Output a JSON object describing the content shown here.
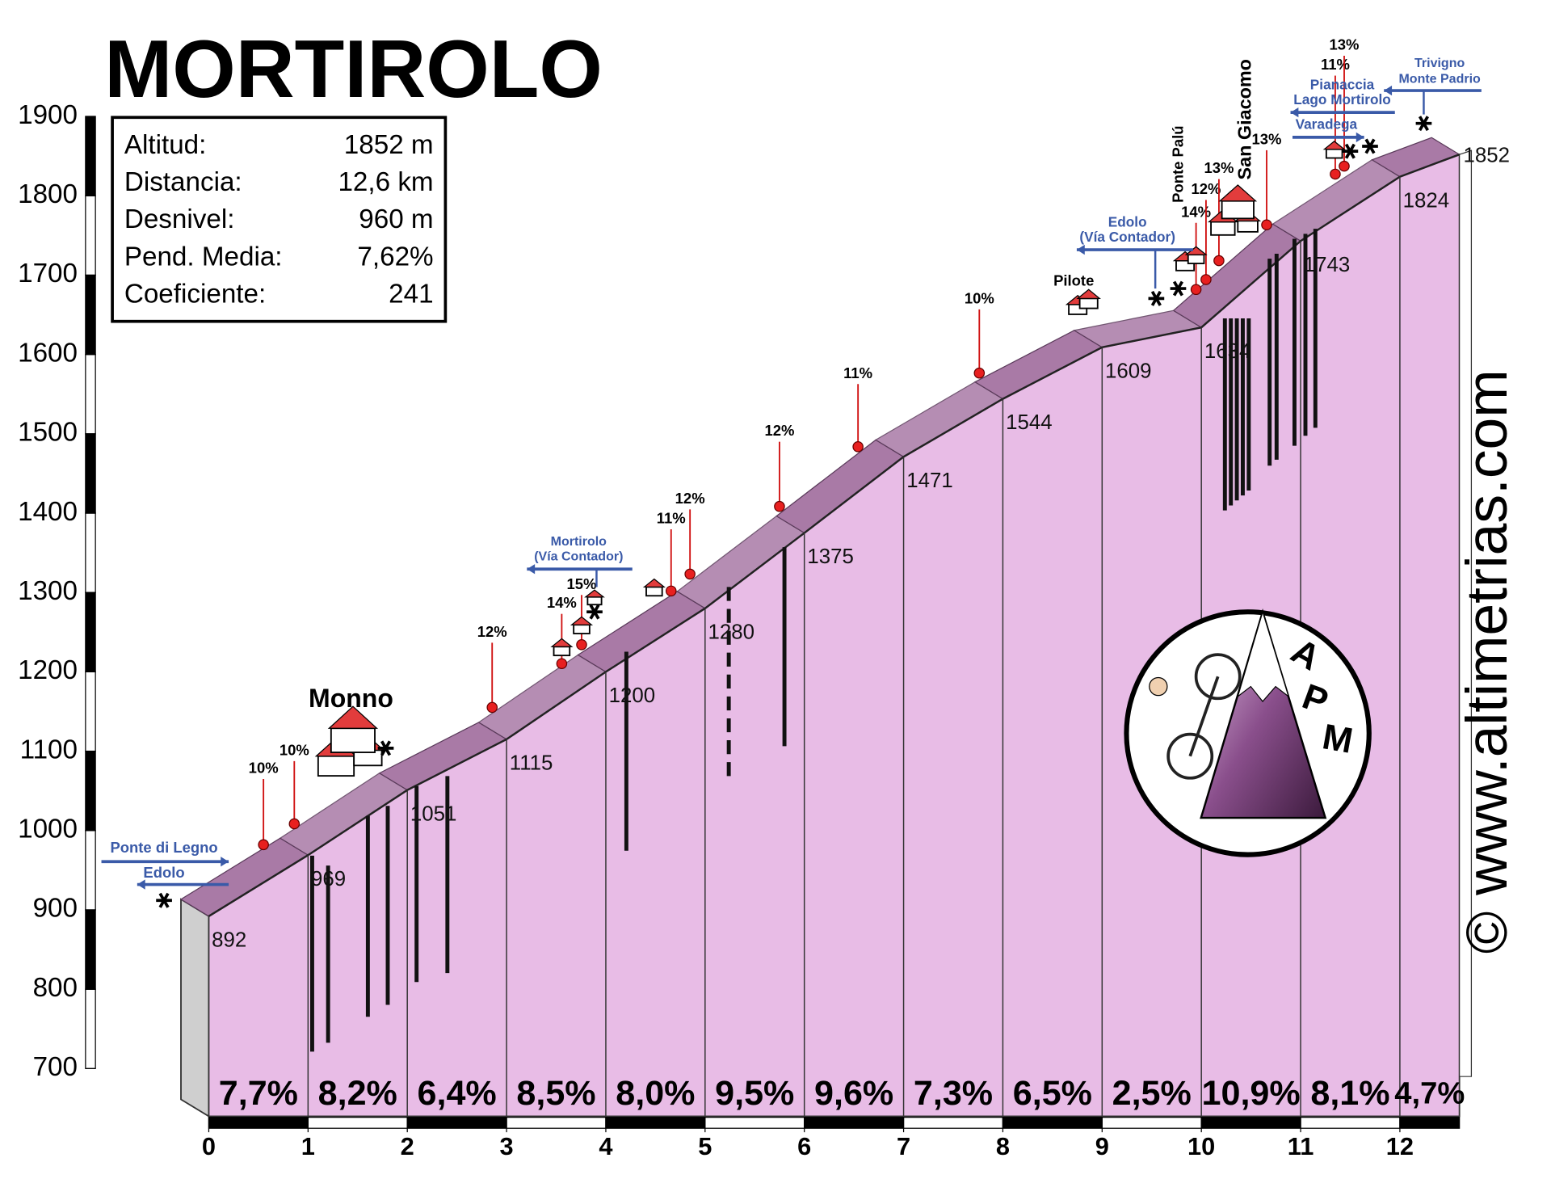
{
  "chart_data": {
    "type": "profile",
    "title": "MORTIROLO",
    "info": [
      {
        "label": "Altitud:",
        "value": "1852 m"
      },
      {
        "label": "Distancia:",
        "value": "12,6 km"
      },
      {
        "label": "Desnivel:",
        "value": "960 m"
      },
      {
        "label": "Pend. Media:",
        "value": "7,62%"
      },
      {
        "label": "Coeficiente:",
        "value": "241"
      }
    ],
    "x": [
      0,
      1,
      2,
      3,
      4,
      5,
      6,
      7,
      8,
      9,
      10,
      11,
      12,
      12.6
    ],
    "values": [
      892,
      969,
      1051,
      1115,
      1200,
      1280,
      1375,
      1471,
      1544,
      1609,
      1634,
      1743,
      1824,
      1852
    ],
    "gradients": {
      "values": [
        7.7,
        8.2,
        6.4,
        8.5,
        8.0,
        9.5,
        9.6,
        7.3,
        6.5,
        2.5,
        10.9,
        8.1,
        4.7
      ],
      "value_labels": [
        "7,7%",
        "8,2%",
        "6,4%",
        "8,5%",
        "8,0%",
        "9,5%",
        "9,6%",
        "7,3%",
        "6,5%",
        "2,5%",
        "10,9%",
        "8,1%",
        "4,7%"
      ]
    },
    "xlim": [
      0,
      12
    ],
    "xticks": [
      0,
      1,
      2,
      3,
      4,
      5,
      6,
      7,
      8,
      9,
      10,
      11,
      12
    ],
    "ylim": [
      700,
      1900
    ],
    "yticks": [
      700,
      800,
      900,
      1000,
      1100,
      1200,
      1300,
      1400,
      1500,
      1600,
      1700,
      1800,
      1900
    ],
    "fill_color": "#e8bce6",
    "ribbon_color": "#a97aa6",
    "gradient_markers": [
      "10%",
      "10%",
      "12%",
      "14%",
      "15%",
      "11%",
      "12%",
      "12%",
      "11%",
      "10%",
      "14%",
      "12%",
      "13%",
      "13%",
      "11%",
      "13%"
    ],
    "places": [
      "Monno",
      "Pilote",
      "Ponte Palú",
      "San Giacomo"
    ],
    "signs": [
      "Ponte di Legno",
      "Edolo",
      "Mortirolo",
      "(Vía Contador)",
      "Edolo",
      "(Vía Contador)",
      "Varadega",
      "Pianaccia",
      "Lago Mortirolo",
      "Trivigno",
      "Monte Padrio"
    ],
    "logo": [
      "A",
      "P",
      "M"
    ],
    "watermark": "© www.altimetrias.com"
  }
}
